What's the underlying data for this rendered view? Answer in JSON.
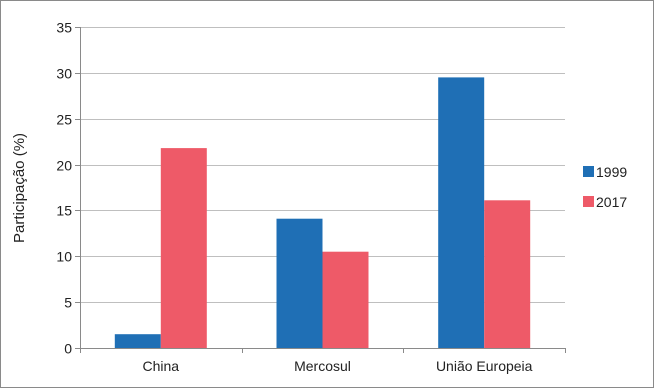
{
  "chart_data": {
    "type": "bar",
    "title": "",
    "xlabel": "",
    "ylabel": "Participação (%)",
    "categories": [
      "China",
      "Mercosul",
      "União Europeia"
    ],
    "series": [
      {
        "name": "1999",
        "color": "#1f6fb5",
        "values": [
          1.5,
          14.1,
          29.5
        ]
      },
      {
        "name": "2017",
        "color": "#ee5a68",
        "values": [
          21.8,
          10.5,
          16.1
        ]
      }
    ],
    "ylim": [
      0,
      35
    ],
    "yticks": [
      0,
      5,
      10,
      15,
      20,
      25,
      30,
      35
    ],
    "grid": true,
    "legend_position": "right",
    "colors": {
      "gridline": "#bfbfbf",
      "axis": "#8a8a8a"
    }
  }
}
